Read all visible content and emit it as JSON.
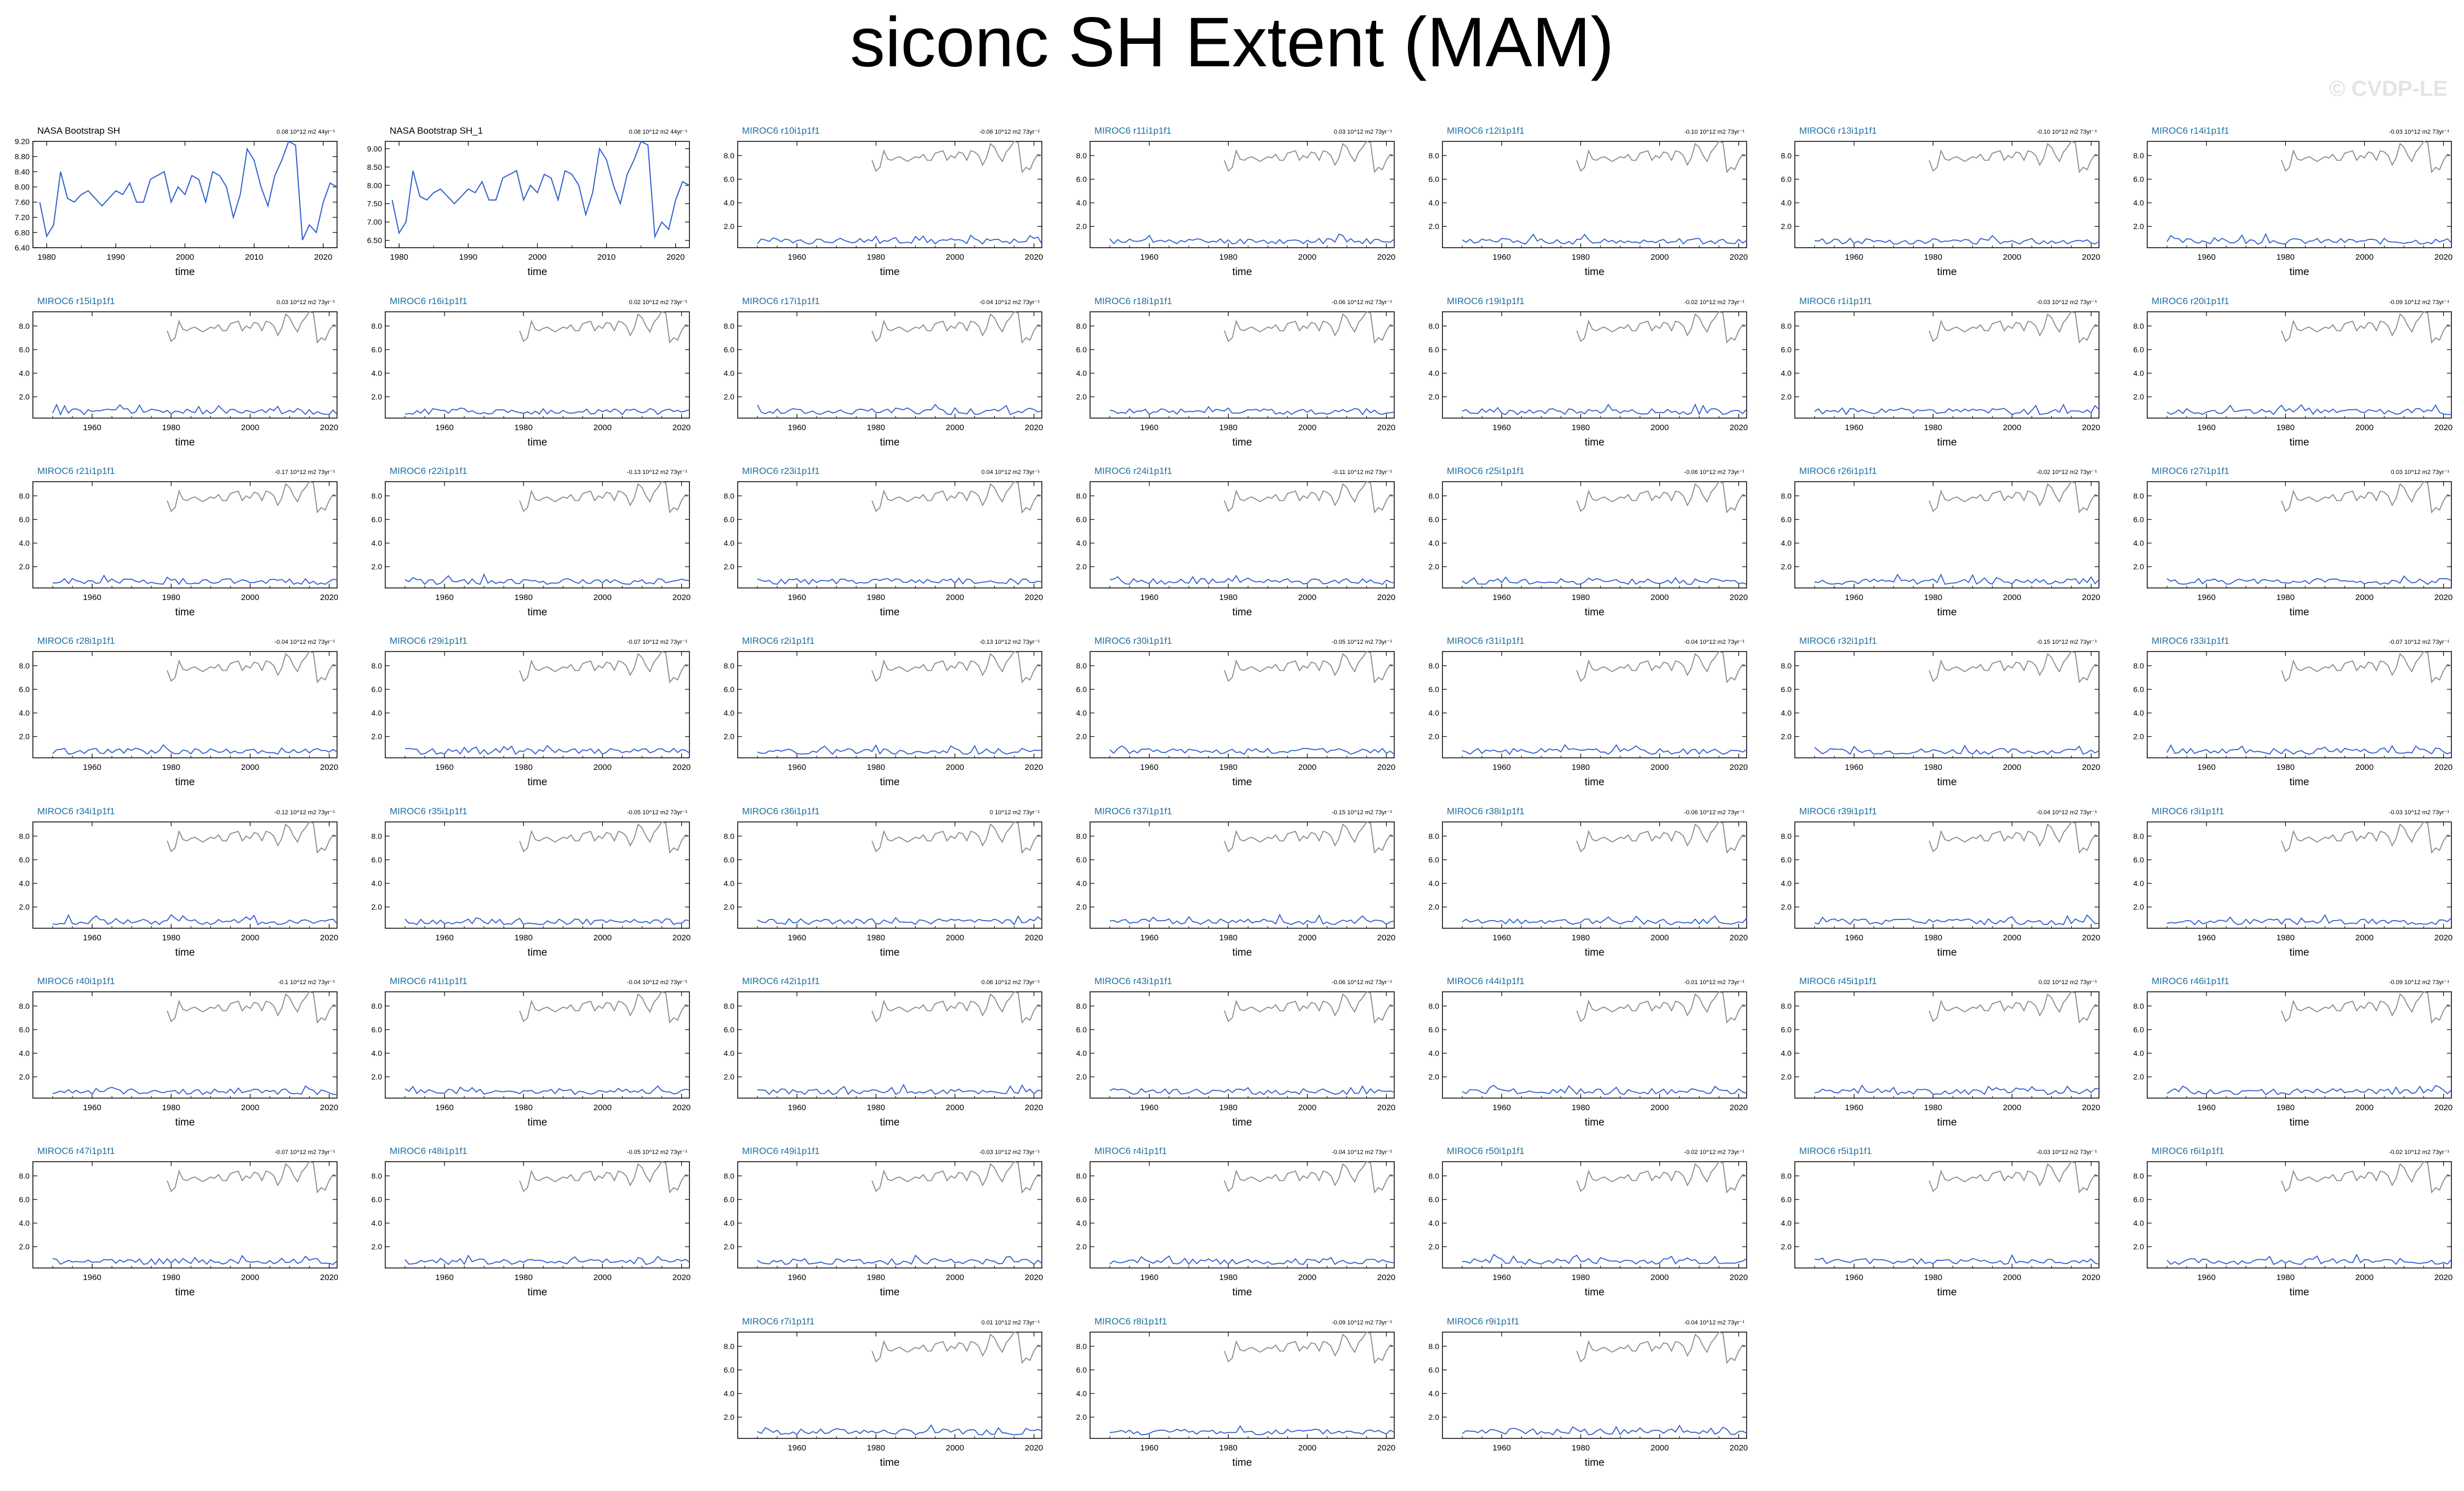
{
  "figure": {
    "title": "siconc SH Extent (MAM)",
    "watermark": "© CVDP-LE",
    "colors": {
      "obs_line": "#2f5fcf",
      "model_line": "#2f5fcf",
      "obs_overlay": "#8a8a8a",
      "model_title": "#1f6fa0",
      "obs_title": "#000000",
      "axis": "#000000"
    }
  },
  "chart_data": [
    {
      "type": "line",
      "title": "NASA Bootstrap SH",
      "trend": "0.08 10^12 m2 44yr⁻¹",
      "xlabel": "time",
      "xlim": [
        1978,
        2022
      ],
      "ylim": [
        6.4,
        9.2
      ],
      "yticks": [
        "6.40",
        "6.80",
        "7.20",
        "7.60",
        "8.00",
        "8.40",
        "8.80",
        "9.20"
      ],
      "xticks": [
        "1980",
        "1990",
        "2000",
        "2010",
        "2020"
      ],
      "series": [
        {
          "x": [
            1979,
            1980,
            1981,
            1982,
            1983,
            1984,
            1985,
            1986,
            1987,
            1988,
            1989,
            1990,
            1991,
            1992,
            1993,
            1994,
            1995,
            1996,
            1997,
            1998,
            1999,
            2000,
            2001,
            2002,
            2003,
            2004,
            2005,
            2006,
            2007,
            2008,
            2009,
            2010,
            2011,
            2012,
            2013,
            2014,
            2015,
            2016,
            2017,
            2018,
            2019,
            2020,
            2021,
            2022
          ],
          "values": [
            7.6,
            6.7,
            7.0,
            8.4,
            7.7,
            7.6,
            7.8,
            7.9,
            7.7,
            7.5,
            7.7,
            7.9,
            7.8,
            8.1,
            7.6,
            7.6,
            8.2,
            8.3,
            8.4,
            7.6,
            8.0,
            7.8,
            8.3,
            8.2,
            7.6,
            8.4,
            8.3,
            8.0,
            7.2,
            7.8,
            9.0,
            8.7,
            8.0,
            7.5,
            8.3,
            8.7,
            9.2,
            9.1,
            6.6,
            7.0,
            6.8,
            7.6,
            8.1,
            8.0
          ]
        }
      ]
    },
    {
      "type": "line",
      "title": "NASA Bootstrap SH_1",
      "trend": "0.08 10^12 m2 44yr⁻¹",
      "xlabel": "time",
      "xlim": [
        1978,
        2022
      ],
      "ylim": [
        6.3,
        9.2
      ],
      "yticks": [
        "6.50",
        "7.00",
        "7.50",
        "8.00",
        "8.50",
        "9.00"
      ],
      "xticks": [
        "1980",
        "1990",
        "2000",
        "2010",
        "2020"
      ],
      "series": [
        {
          "x": [
            1979,
            1980,
            1981,
            1982,
            1983,
            1984,
            1985,
            1986,
            1987,
            1988,
            1989,
            1990,
            1991,
            1992,
            1993,
            1994,
            1995,
            1996,
            1997,
            1998,
            1999,
            2000,
            2001,
            2002,
            2003,
            2004,
            2005,
            2006,
            2007,
            2008,
            2009,
            2010,
            2011,
            2012,
            2013,
            2014,
            2015,
            2016,
            2017,
            2018,
            2019,
            2020,
            2021,
            2022
          ],
          "values": [
            7.6,
            6.7,
            7.0,
            8.4,
            7.7,
            7.6,
            7.8,
            7.9,
            7.7,
            7.5,
            7.7,
            7.9,
            7.8,
            8.1,
            7.6,
            7.6,
            8.2,
            8.3,
            8.4,
            7.6,
            8.0,
            7.8,
            8.3,
            8.2,
            7.6,
            8.4,
            8.3,
            8.0,
            7.2,
            7.8,
            9.0,
            8.7,
            8.0,
            7.5,
            8.3,
            8.7,
            9.2,
            9.1,
            6.6,
            7.0,
            6.8,
            7.6,
            8.1,
            8.0
          ]
        }
      ]
    },
    {
      "type": "line",
      "title": "MIROC6 r10i1p1f1",
      "trend": "-0.06 10^12 m2 73yr⁻¹",
      "seed": 10
    },
    {
      "type": "line",
      "title": "MIROC6 r11i1p1f1",
      "trend": "0.03 10^12 m2 73yr⁻¹",
      "seed": 11
    },
    {
      "type": "line",
      "title": "MIROC6 r12i1p1f1",
      "trend": "-0.10 10^12 m2 73yr⁻¹",
      "seed": 12
    },
    {
      "type": "line",
      "title": "MIROC6 r13i1p1f1",
      "trend": "-0.10 10^12 m2 73yr⁻¹",
      "seed": 13
    },
    {
      "type": "line",
      "title": "MIROC6 r14i1p1f1",
      "trend": "-0.03 10^12 m2 73yr⁻¹",
      "seed": 14
    },
    {
      "type": "line",
      "title": "MIROC6 r15i1p1f1",
      "trend": "0.03 10^12 m2 73yr⁻¹",
      "seed": 15
    },
    {
      "type": "line",
      "title": "MIROC6 r16i1p1f1",
      "trend": "0.02 10^12 m2 73yr⁻¹",
      "seed": 16
    },
    {
      "type": "line",
      "title": "MIROC6 r17i1p1f1",
      "trend": "-0.04 10^12 m2 73yr⁻¹",
      "seed": 17
    },
    {
      "type": "line",
      "title": "MIROC6 r18i1p1f1",
      "trend": "-0.06 10^12 m2 73yr⁻¹",
      "seed": 18
    },
    {
      "type": "line",
      "title": "MIROC6 r19i1p1f1",
      "trend": "-0.02 10^12 m2 73yr⁻¹",
      "seed": 19
    },
    {
      "type": "line",
      "title": "MIROC6 r1i1p1f1",
      "trend": "-0.03 10^12 m2 73yr⁻¹",
      "seed": 1
    },
    {
      "type": "line",
      "title": "MIROC6 r20i1p1f1",
      "trend": "-0.09 10^12 m2 73yr⁻¹",
      "seed": 20
    },
    {
      "type": "line",
      "title": "MIROC6 r21i1p1f1",
      "trend": "-0.17 10^12 m2 73yr⁻¹",
      "seed": 21
    },
    {
      "type": "line",
      "title": "MIROC6 r22i1p1f1",
      "trend": "-0.13 10^12 m2 73yr⁻¹",
      "seed": 22
    },
    {
      "type": "line",
      "title": "MIROC6 r23i1p1f1",
      "trend": "0.04 10^12 m2 73yr⁻¹",
      "seed": 23
    },
    {
      "type": "line",
      "title": "MIROC6 r24i1p1f1",
      "trend": "-0.11 10^12 m2 73yr⁻¹",
      "seed": 24
    },
    {
      "type": "line",
      "title": "MIROC6 r25i1p1f1",
      "trend": "-0.06 10^12 m2 73yr⁻¹",
      "seed": 25
    },
    {
      "type": "line",
      "title": "MIROC6 r26i1p1f1",
      "trend": "-0.02 10^12 m2 73yr⁻¹",
      "seed": 26
    },
    {
      "type": "line",
      "title": "MIROC6 r27i1p1f1",
      "trend": "0.03 10^12 m2 73yr⁻¹",
      "seed": 27
    },
    {
      "type": "line",
      "title": "MIROC6 r28i1p1f1",
      "trend": "-0.04 10^12 m2 73yr⁻¹",
      "seed": 28
    },
    {
      "type": "line",
      "title": "MIROC6 r29i1p1f1",
      "trend": "-0.07 10^12 m2 73yr⁻¹",
      "seed": 29
    },
    {
      "type": "line",
      "title": "MIROC6 r2i1p1f1",
      "trend": "-0.13 10^12 m2 73yr⁻¹",
      "seed": 2
    },
    {
      "type": "line",
      "title": "MIROC6 r30i1p1f1",
      "trend": "-0.05 10^12 m2 73yr⁻¹",
      "seed": 30
    },
    {
      "type": "line",
      "title": "MIROC6 r31i1p1f1",
      "trend": "-0.04 10^12 m2 73yr⁻¹",
      "seed": 31
    },
    {
      "type": "line",
      "title": "MIROC6 r32i1p1f1",
      "trend": "-0.15 10^12 m2 73yr⁻¹",
      "seed": 32
    },
    {
      "type": "line",
      "title": "MIROC6 r33i1p1f1",
      "trend": "-0.07 10^12 m2 73yr⁻¹",
      "seed": 33
    },
    {
      "type": "line",
      "title": "MIROC6 r34i1p1f1",
      "trend": "-0.12 10^12 m2 73yr⁻¹",
      "seed": 34
    },
    {
      "type": "line",
      "title": "MIROC6 r35i1p1f1",
      "trend": "-0.05 10^12 m2 73yr⁻¹",
      "seed": 35
    },
    {
      "type": "line",
      "title": "MIROC6 r36i1p1f1",
      "trend": "0 10^12 m2 73yr⁻¹",
      "seed": 36
    },
    {
      "type": "line",
      "title": "MIROC6 r37i1p1f1",
      "trend": "-0.15 10^12 m2 73yr⁻¹",
      "seed": 37
    },
    {
      "type": "line",
      "title": "MIROC6 r38i1p1f1",
      "trend": "-0.06 10^12 m2 73yr⁻¹",
      "seed": 38
    },
    {
      "type": "line",
      "title": "MIROC6 r39i1p1f1",
      "trend": "-0.04 10^12 m2 73yr⁻¹",
      "seed": 39
    },
    {
      "type": "line",
      "title": "MIROC6 r3i1p1f1",
      "trend": "-0.03 10^12 m2 73yr⁻¹",
      "seed": 3
    },
    {
      "type": "line",
      "title": "MIROC6 r40i1p1f1",
      "trend": "-0.1 10^12 m2 73yr⁻¹",
      "seed": 40
    },
    {
      "type": "line",
      "title": "MIROC6 r41i1p1f1",
      "trend": "-0.04 10^12 m2 73yr⁻¹",
      "seed": 41
    },
    {
      "type": "line",
      "title": "MIROC6 r42i1p1f1",
      "trend": "0.06 10^12 m2 73yr⁻¹",
      "seed": 42
    },
    {
      "type": "line",
      "title": "MIROC6 r43i1p1f1",
      "trend": "-0.06 10^12 m2 73yr⁻¹",
      "seed": 43
    },
    {
      "type": "line",
      "title": "MIROC6 r44i1p1f1",
      "trend": "-0.01 10^12 m2 73yr⁻¹",
      "seed": 44
    },
    {
      "type": "line",
      "title": "MIROC6 r45i1p1f1",
      "trend": "0.02 10^12 m2 73yr⁻¹",
      "seed": 45
    },
    {
      "type": "line",
      "title": "MIROC6 r46i1p1f1",
      "trend": "-0.09 10^12 m2 73yr⁻¹",
      "seed": 46
    },
    {
      "type": "line",
      "title": "MIROC6 r47i1p1f1",
      "trend": "-0.07 10^12 m2 73yr⁻¹",
      "seed": 47
    },
    {
      "type": "line",
      "title": "MIROC6 r48i1p1f1",
      "trend": "-0.05 10^12 m2 73yr⁻¹",
      "seed": 48
    },
    {
      "type": "line",
      "title": "MIROC6 r49i1p1f1",
      "trend": "-0.03 10^12 m2 73yr⁻¹",
      "seed": 49
    },
    {
      "type": "line",
      "title": "MIROC6 r4i1p1f1",
      "trend": "-0.04 10^12 m2 73yr⁻¹",
      "seed": 4
    },
    {
      "type": "line",
      "title": "MIROC6 r50i1p1f1",
      "trend": "-0.02 10^12 m2 73yr⁻¹",
      "seed": 50
    },
    {
      "type": "line",
      "title": "MIROC6 r5i1p1f1",
      "trend": "-0.03 10^12 m2 73yr⁻¹",
      "seed": 5
    },
    {
      "type": "line",
      "title": "MIROC6 r6i1p1f1",
      "trend": "-0.02 10^12 m2 73yr⁻¹",
      "seed": 6
    },
    {
      "type": "line",
      "title": "MIROC6 r7i1p1f1",
      "trend": "0.01 10^12 m2 73yr⁻¹",
      "seed": 7
    },
    {
      "type": "line",
      "title": "MIROC6 r8i1p1f1",
      "trend": "-0.09 10^12 m2 73yr⁻¹",
      "seed": 8
    },
    {
      "type": "line",
      "title": "MIROC6 r9i1p1f1",
      "trend": "-0.04 10^12 m2 73yr⁻¹",
      "seed": 9
    }
  ],
  "model_panel_axes": {
    "xlabel": "time",
    "xlim": [
      1945,
      2022
    ],
    "ylim": [
      0.2,
      9.2
    ],
    "yticks": [
      "2.0",
      "4.0",
      "6.0",
      "8.0"
    ],
    "xticks": [
      "1960",
      "1980",
      "2000",
      "2020"
    ],
    "model_series_years": [
      1950,
      2022
    ],
    "model_series_mean": 0.75,
    "obs_overlay_values": [
      7.6,
      6.7,
      7.0,
      8.4,
      7.7,
      7.6,
      7.8,
      7.9,
      7.7,
      7.5,
      7.7,
      7.9,
      7.8,
      8.1,
      7.6,
      7.6,
      8.2,
      8.3,
      8.4,
      7.6,
      8.0,
      7.8,
      8.3,
      8.2,
      7.6,
      8.4,
      8.3,
      8.0,
      7.2,
      7.8,
      9.0,
      8.7,
      8.0,
      7.5,
      8.3,
      8.7,
      9.2,
      9.1,
      6.6,
      7.0,
      6.8,
      7.6,
      8.1,
      8.0
    ],
    "obs_overlay_years": [
      1979,
      2022
    ]
  }
}
